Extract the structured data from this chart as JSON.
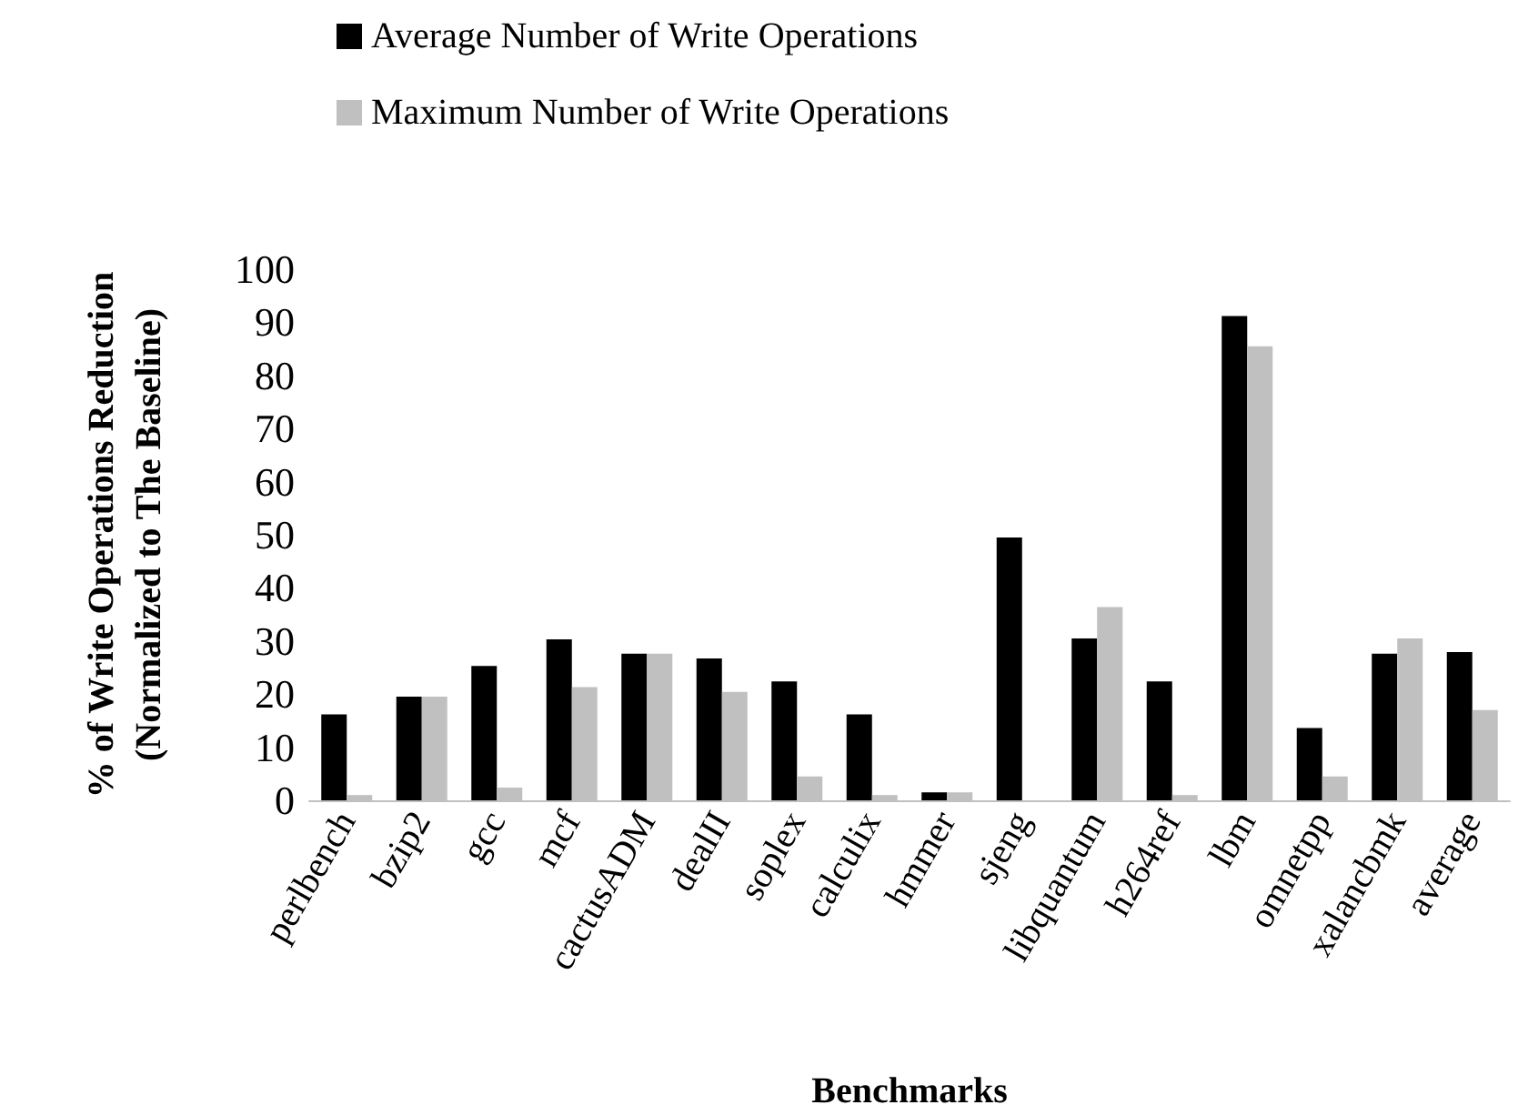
{
  "chart_data": {
    "type": "bar",
    "xlabel": "Benchmarks",
    "ylabel": "% of Write Operations Reduction\n(Normalized to The Baseline)",
    "categories": [
      "perlbench",
      "bzip2",
      "gcc",
      "mcf",
      "cactusADM",
      "dealII",
      "soplex",
      "calculix",
      "hmmer",
      "sjeng",
      "libquantum",
      "h264ref",
      "lbm",
      "omnetpp",
      "xalancbmk",
      "average"
    ],
    "series": [
      {
        "name": "Average Number of Write Operations",
        "color": "#000000",
        "values": [
          16.2,
          19.5,
          25.3,
          30.3,
          27.6,
          26.7,
          22.4,
          16.2,
          1.5,
          49.5,
          30.5,
          22.4,
          91.2,
          13.6,
          27.6,
          27.9
        ]
      },
      {
        "name": "Maximum Number of Write Operations",
        "color": "#c0c0c0",
        "values": [
          1,
          19.5,
          2.4,
          21.3,
          27.6,
          20.4,
          4.5,
          1,
          1.5,
          0,
          36.4,
          1,
          85.5,
          4.5,
          30.5,
          17
        ]
      }
    ],
    "ylim": [
      0,
      100
    ],
    "yticks": [
      0,
      10,
      20,
      30,
      40,
      50,
      60,
      70,
      80,
      90,
      100
    ],
    "grid": false,
    "legend": "top"
  }
}
